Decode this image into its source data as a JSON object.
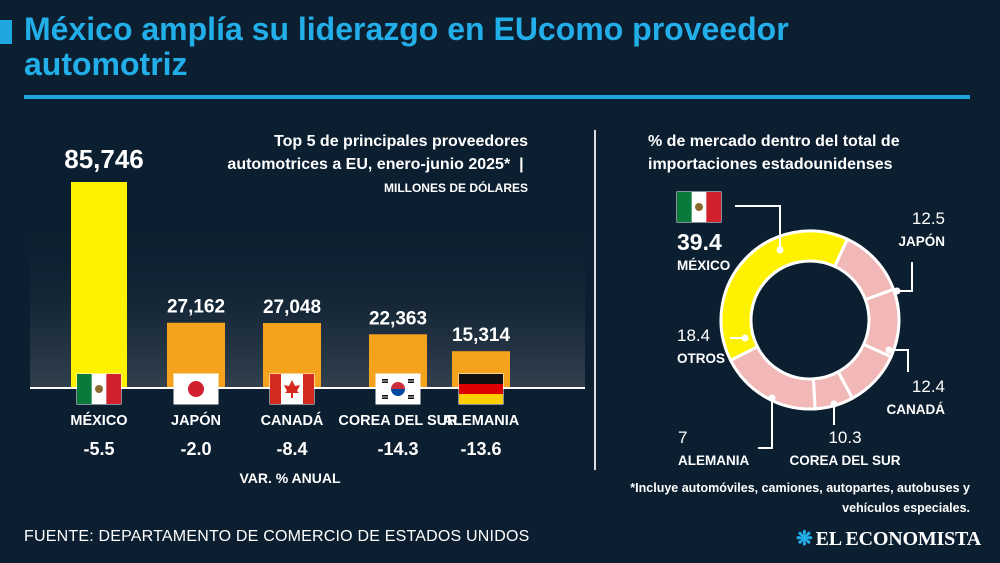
{
  "header": {
    "title": "México amplía su liderazgo en EUcomo proveedor automotriz"
  },
  "bar_panel": {
    "title_text": "Top 5 de principales proveedores automotrices a EU, enero-junio 2025*",
    "units_text": "MILLONES DE DÓLARES",
    "variation_caption": "VAR. % ANUAL"
  },
  "pie_panel": {
    "title_text": "% de mercado dentro del total de importaciones estadounidenses"
  },
  "footnote": "*Incluye automóviles, camiones, autopartes, autobuses y vehículos especiales.",
  "source": "FUENTE: DEPARTAMENTO DE COMERCIO DE ESTADOS UNIDOS",
  "brand": "EL ECONOMISTA",
  "colors": {
    "background": "#0c1f30",
    "accent": "#22aee8",
    "mexico_bar": "#fff200",
    "other_bars": "#f5a21d",
    "mexico_slice": "#fff200",
    "other_slices": "#f2b7b7"
  },
  "chart_data": [
    {
      "type": "bar",
      "title": "Top 5 de principales proveedores automotrices a EU, enero-junio 2025*",
      "ylabel": "MILLONES DE DÓLARES",
      "ylim": [
        0,
        90000
      ],
      "categories": [
        "MÉXICO",
        "JAPÓN",
        "CANADÁ",
        "COREA DEL SUR",
        "ALEMANIA"
      ],
      "values": [
        85746,
        27162,
        27048,
        22363,
        15314
      ],
      "value_labels": [
        "85,746",
        "27,162",
        "27,048",
        "22,363",
        "15,314"
      ],
      "variation_pct": [
        -5.5,
        -2.0,
        -8.4,
        -14.3,
        -13.6
      ],
      "variation_labels": [
        "-5.5",
        "-2.0",
        "-8.4",
        "-14.3",
        "-13.6"
      ],
      "flags": [
        "mexico-flag",
        "japan-flag",
        "canada-flag",
        "south-korea-flag",
        "germany-flag"
      ]
    },
    {
      "type": "pie",
      "title": "% de mercado dentro del total de importaciones estadounidenses",
      "labels": [
        "MÉXICO",
        "JAPÓN",
        "CANADÁ",
        "COREA DEL SUR",
        "ALEMANIA",
        "OTROS"
      ],
      "values": [
        39.4,
        12.5,
        12.4,
        10.3,
        7,
        18.4
      ],
      "value_labels": [
        "39.4",
        "12.5",
        "12.4",
        "10.3",
        "7",
        "18.4"
      ]
    }
  ]
}
